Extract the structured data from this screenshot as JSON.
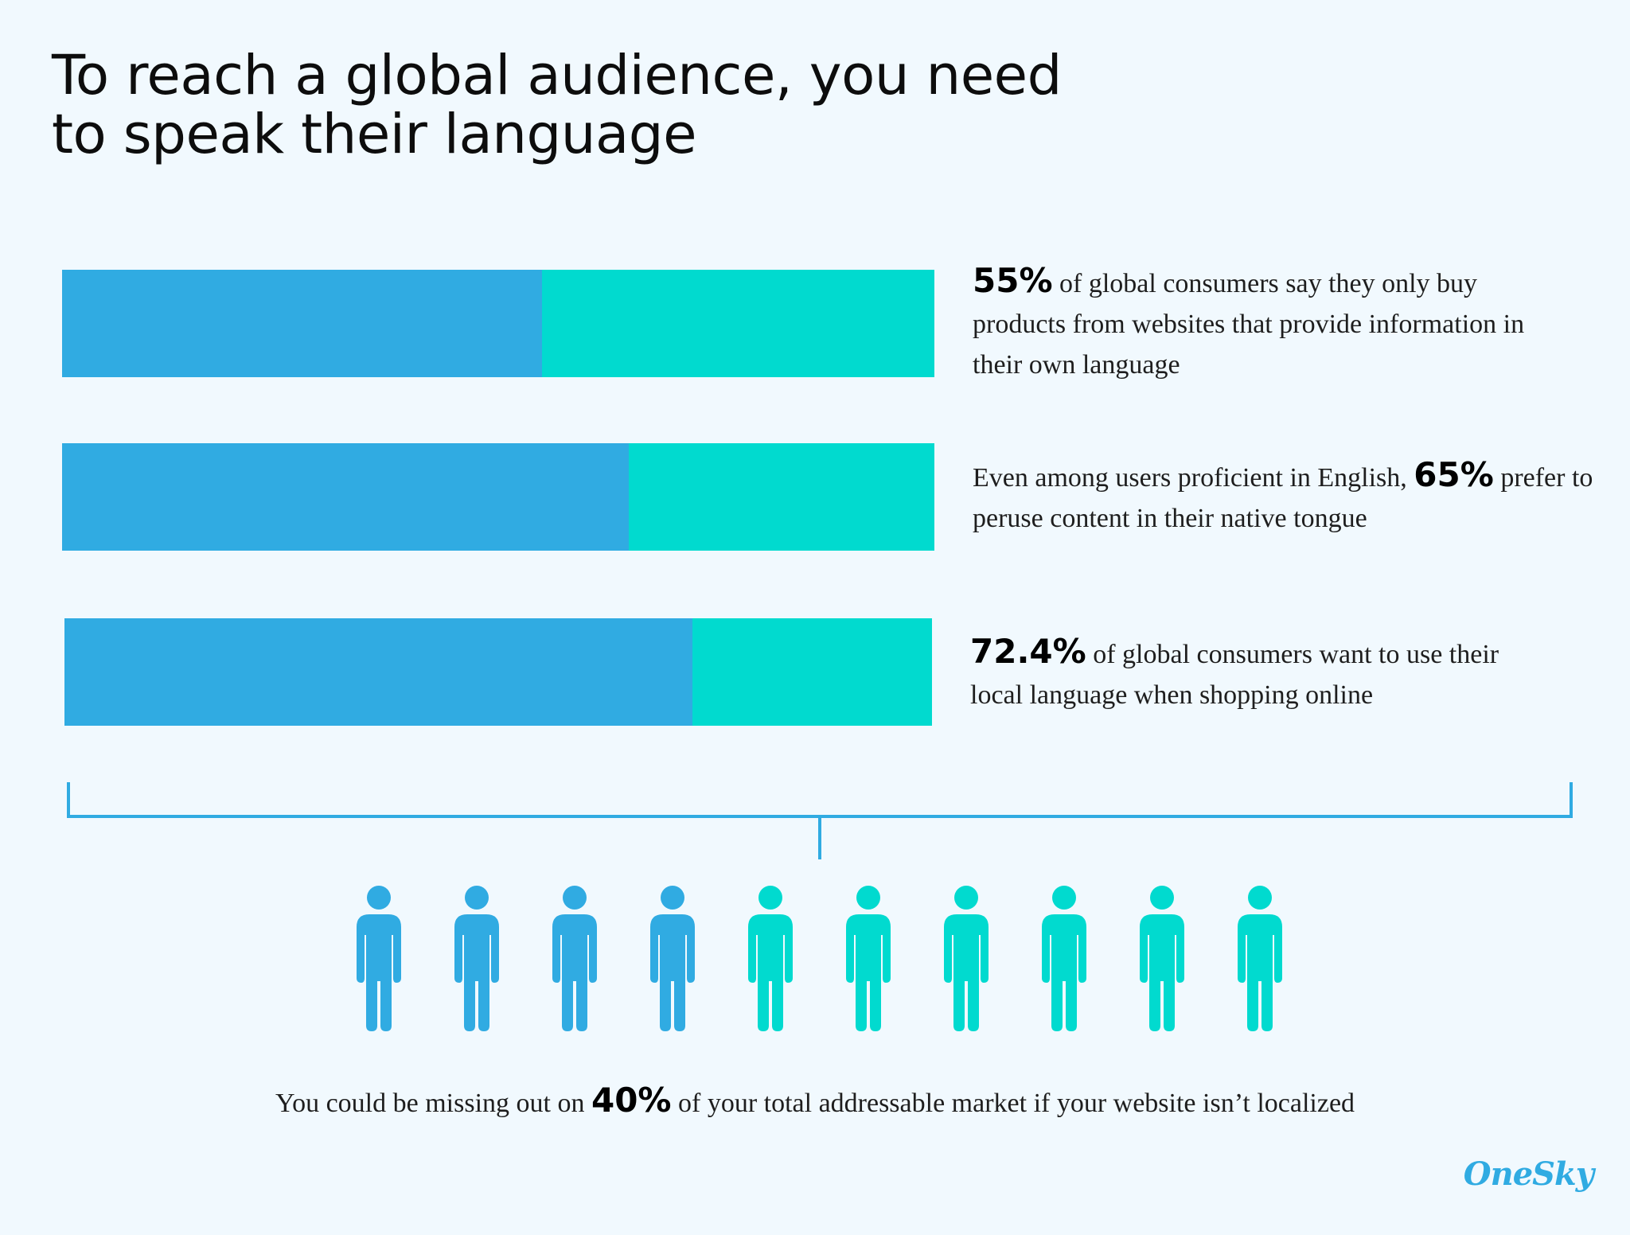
{
  "title": {
    "line1": "To reach a global audience, you need",
    "line2": "to speak their language"
  },
  "chart_data": {
    "type": "bar",
    "orientation": "horizontal",
    "stacked": true,
    "range": [
      0,
      100
    ],
    "colors": {
      "value": "#30abe2",
      "remainder": "#01dacf"
    },
    "bars": [
      {
        "value": 55,
        "highlight": "55%",
        "text_before": "",
        "text_after": " of global consumers say they only buy products from websites that provide information in their own language"
      },
      {
        "value": 65,
        "highlight": "65%",
        "text_before": "Even among users proficient in English, ",
        "text_after": " prefer to peruse content in their native tongue"
      },
      {
        "value": 72.4,
        "highlight": "72.4%",
        "text_before": "",
        "text_after": " of global consumers want to use their local language when shopping online"
      }
    ],
    "people": {
      "total": 10,
      "highlighted": 4
    }
  },
  "footer": {
    "text_before": "You could be missing out on ",
    "highlight": "40%",
    "text_after": " of your total addressable market if your website isn’t localized"
  },
  "brand": {
    "logo_text": "OneSky",
    "color": "#30abe2"
  }
}
